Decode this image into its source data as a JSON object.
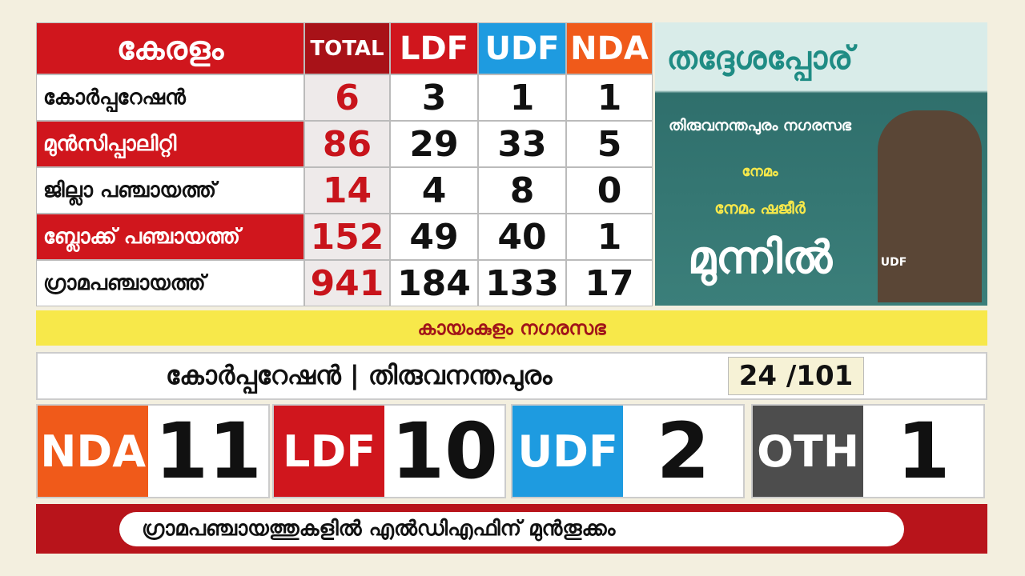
{
  "table": {
    "header": [
      "കേരളം",
      "TOTAL",
      "LDF",
      "UDF",
      "NDA"
    ],
    "rows": [
      [
        "കോർപ്പറേഷൻ",
        "6",
        "3",
        "1",
        "1"
      ],
      [
        "മുൻസിപ്പാലിറ്റി",
        "86",
        "29",
        "33",
        "5"
      ],
      [
        "ജില്ലാ പഞ്ചായത്ത്",
        "14",
        "4",
        "8",
        "0"
      ],
      [
        "ബ്ലോക്ക് പഞ്ചായത്ത്",
        "152",
        "49",
        "40",
        "1"
      ],
      [
        "ഗ്രാമപഞ്ചായത്ത്",
        "941",
        "184",
        "133",
        "17"
      ]
    ]
  },
  "panel": {
    "title": "തദ്ദേശപ്പോര്",
    "body": "തിരുവനന്തപുരം നഗരസഭ",
    "ward": "നേമം",
    "candidate": "നേമം ഷജീർ",
    "status": "മുന്നിൽ",
    "party": "UDF"
  },
  "banner": "കായംകുളം നഗരസഭ",
  "corporation": {
    "label": "കോർപ്പറേഷൻ | തിരുവനന്തപുരം",
    "count": "24 /101"
  },
  "scores": [
    {
      "party": "NDA",
      "seats": "11"
    },
    {
      "party": "LDF",
      "seats": "10"
    },
    {
      "party": "UDF",
      "seats": "2"
    },
    {
      "party": "OTH",
      "seats": "1"
    }
  ],
  "ticker": "ഗ്രാമപഞ്ചായത്തുകളിൽ എൽഡിഎഫിന് മുൻതൂക്കം"
}
